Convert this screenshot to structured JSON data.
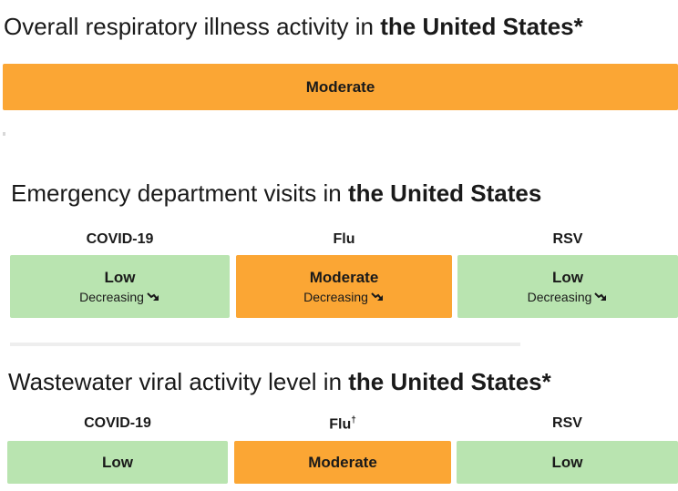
{
  "overall": {
    "title": "Overall respiratory illness activity in",
    "title_bold": "the United States*",
    "level": "Moderate",
    "color": "#fba634"
  },
  "emergency": {
    "title": "Emergency department visits in",
    "title_bold": "the United States",
    "cards": [
      {
        "name": "COVID-19",
        "level": "Low",
        "trend": "Decreasing",
        "color": "#b9e4b0"
      },
      {
        "name": "Flu",
        "level": "Moderate",
        "trend": "Decreasing",
        "color": "#fba634"
      },
      {
        "name": "RSV",
        "level": "Low",
        "trend": "Decreasing",
        "color": "#b9e4b0"
      }
    ]
  },
  "wastewater": {
    "title": "Wastewater viral activity level in",
    "title_bold": "the United States*",
    "cards": [
      {
        "name": "COVID-19",
        "level": "Low",
        "color": "#b9e4b0"
      },
      {
        "name": "Flu",
        "note": "†",
        "level": "Moderate",
        "color": "#fba634"
      },
      {
        "name": "RSV",
        "level": "Low",
        "color": "#b9e4b0"
      }
    ]
  }
}
